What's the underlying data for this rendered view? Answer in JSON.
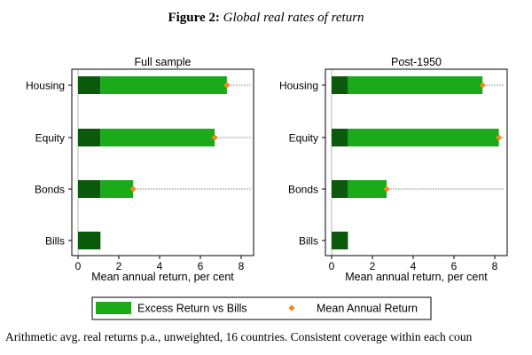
{
  "figure": {
    "label": "Figure 2:",
    "name": "Global real rates of return"
  },
  "caption": "Arithmetic avg. real returns p.a., unweighted, 16 countries. Consistent coverage within each coun",
  "colors": {
    "bills": "#0b5a0b",
    "excess": "#1aaa1a",
    "marker": "#f08a1a",
    "frame": "#000000",
    "guide": "#000000"
  },
  "chart_data": [
    {
      "type": "bar",
      "orientation": "horizontal",
      "title": "Full sample",
      "xlabel": "Mean annual return, per cent",
      "ylabel": "",
      "xlim": [
        0,
        8.5
      ],
      "xticks": [
        0,
        2,
        4,
        6,
        8
      ],
      "categories": [
        "Housing",
        "Equity",
        "Bonds",
        "Bills"
      ],
      "series": [
        {
          "name": "Bills",
          "values": [
            1.1,
            1.1,
            1.1,
            1.1
          ]
        },
        {
          "name": "Excess Return vs Bills",
          "values": [
            6.2,
            5.6,
            1.6,
            0
          ]
        },
        {
          "name": "Mean Annual Return",
          "values": [
            7.3,
            6.7,
            2.7,
            1.1
          ]
        }
      ],
      "dotted_guides": true
    },
    {
      "type": "bar",
      "orientation": "horizontal",
      "title": "Post-1950",
      "xlabel": "Mean annual return, per cent",
      "ylabel": "",
      "xlim": [
        0,
        8.5
      ],
      "xticks": [
        0,
        2,
        4,
        6,
        8
      ],
      "categories": [
        "Housing",
        "Equity",
        "Bonds",
        "Bills"
      ],
      "series": [
        {
          "name": "Bills",
          "values": [
            0.8,
            0.8,
            0.8,
            0.8
          ]
        },
        {
          "name": "Excess Return vs Bills",
          "values": [
            6.6,
            7.4,
            1.9,
            0
          ]
        },
        {
          "name": "Mean Annual Return",
          "values": [
            7.4,
            8.2,
            2.7,
            0.8
          ]
        }
      ],
      "dotted_guides": true
    }
  ],
  "legend": {
    "position": "bottom",
    "items": [
      {
        "label": "Excess Return vs Bills",
        "kind": "bar"
      },
      {
        "label": "Mean Annual Return",
        "kind": "diamond"
      }
    ]
  }
}
